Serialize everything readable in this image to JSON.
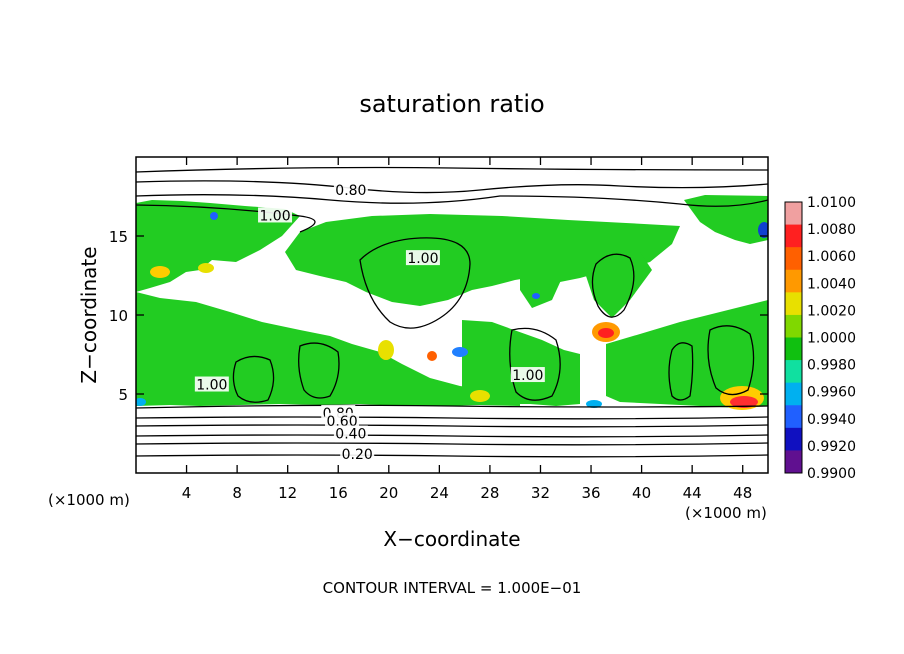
{
  "chart_data": {
    "type": "heatmap",
    "title": "saturation ratio",
    "xlabel": "X−coordinate",
    "ylabel": "Z−coordinate",
    "x_unit_left": "(×1000 m)",
    "x_unit_right": "(×1000 m)",
    "footer": "CONTOUR INTERVAL = 1.000E−01",
    "xlim": [
      0,
      50
    ],
    "ylim": [
      0,
      20
    ],
    "x_ticks": [
      4,
      8,
      12,
      16,
      20,
      24,
      28,
      32,
      36,
      40,
      44,
      48
    ],
    "y_ticks": [
      5,
      10,
      15
    ],
    "colorbar": {
      "levels": [
        "1.0100",
        "1.0080",
        "1.0060",
        "1.0040",
        "1.0020",
        "1.0000",
        "0.9980",
        "0.9960",
        "0.9940",
        "0.9920",
        "0.9900"
      ],
      "colors": [
        "#f0a0a0",
        "#ff2020",
        "#ff6000",
        "#ff9900",
        "#e8e000",
        "#80d800",
        "#10c010",
        "#10e0a0",
        "#00b0f0",
        "#2060ff",
        "#1010c0",
        "#601090"
      ]
    },
    "contour_labels": [
      {
        "text": "0.80",
        "x": 17.0,
        "z": 17.9
      },
      {
        "text": "1.00",
        "x": 11.0,
        "z": 16.3
      },
      {
        "text": "1.00",
        "x": 22.7,
        "z": 13.6
      },
      {
        "text": "1.00",
        "x": 6.0,
        "z": 5.6
      },
      {
        "text": "1.00",
        "x": 31.0,
        "z": 6.2
      },
      {
        "text": "0.80",
        "x": 16.0,
        "z": 3.8
      },
      {
        "text": "0.60",
        "x": 16.3,
        "z": 3.3
      },
      {
        "text": "0.40",
        "x": 17.0,
        "z": 2.5
      },
      {
        "text": "0.20",
        "x": 17.5,
        "z": 1.2
      }
    ]
  }
}
